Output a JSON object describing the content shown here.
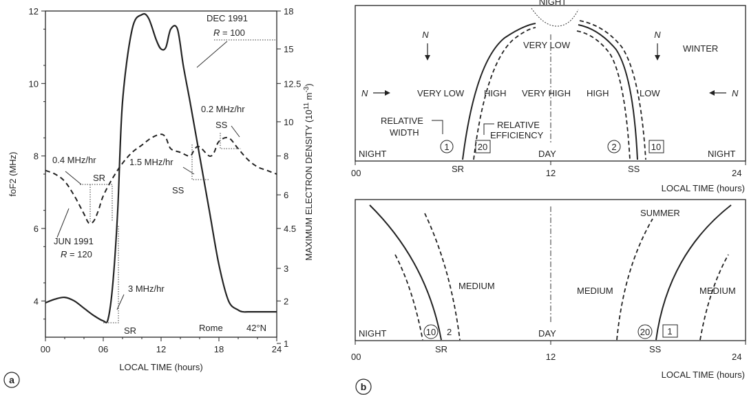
{
  "chart_data": [
    {
      "id": "a",
      "type": "line",
      "panel_label": "a",
      "xlabel": "LOCAL TIME  (hours)",
      "ylabel": "foF2  (MHz)",
      "y2label": "MAXIMUM ELECTRON DENSITY  (10",
      "y2label_exp": "11",
      "y2label_unit": " m",
      "y2label_unit_exp": "-3",
      "y2label_close": ")",
      "xlim": [
        0,
        24
      ],
      "ylim": [
        3,
        12
      ],
      "y2lim": [
        1,
        18
      ],
      "x_ticks": [
        0,
        6,
        12,
        18,
        24
      ],
      "x_tick_labels": [
        "00",
        "06",
        "12",
        "18",
        "24"
      ],
      "y_ticks": [
        4,
        6,
        8,
        10,
        12
      ],
      "y_tick_labels": [
        "4",
        "6",
        "8",
        "10",
        "12"
      ],
      "y2_ticks": [
        1,
        2,
        3,
        4.5,
        6,
        8,
        10,
        12.5,
        15,
        18
      ],
      "y2_tick_labels": [
        "1",
        "2",
        "3",
        "4.5",
        "6",
        "8",
        "10",
        "12.5",
        "15",
        "18"
      ],
      "series": [
        {
          "name": "DEC 1991",
          "style": "solid",
          "x": [
            0,
            1,
            2,
            3,
            4,
            5,
            6,
            6.5,
            7,
            7.5,
            8,
            9,
            10,
            10.7,
            11.5,
            12,
            12.5,
            13,
            13.7,
            14.3,
            15,
            16,
            17,
            18,
            19,
            20,
            20.5,
            21,
            22,
            23,
            24
          ],
          "y": [
            3.95,
            4.05,
            4.1,
            4.0,
            3.8,
            3.6,
            3.45,
            3.5,
            4.5,
            6.5,
            9.5,
            11.5,
            11.9,
            11.8,
            11.2,
            10.95,
            11.0,
            11.5,
            11.5,
            10.5,
            9.5,
            8.0,
            6.5,
            5.0,
            4.0,
            3.75,
            3.7,
            3.7,
            3.7,
            3.7,
            3.7
          ]
        },
        {
          "name": "JUN 1991",
          "style": "dashed",
          "x": [
            0,
            1,
            2,
            3,
            4,
            4.5,
            5,
            5.5,
            6,
            7,
            8,
            9,
            10,
            11,
            12,
            12.5,
            13,
            14,
            15,
            15.5,
            16,
            17,
            17.5,
            18,
            19,
            20,
            21,
            22,
            23,
            24
          ],
          "y": [
            7.6,
            7.5,
            7.3,
            6.9,
            6.4,
            6.15,
            6.2,
            6.5,
            6.9,
            7.4,
            7.8,
            8.1,
            8.3,
            8.5,
            8.6,
            8.5,
            8.2,
            8.1,
            8.0,
            8.2,
            8.25,
            8.0,
            8.1,
            8.4,
            8.5,
            8.2,
            7.9,
            7.7,
            7.6,
            7.5
          ]
        }
      ],
      "annotations": [
        {
          "text": "DEC 1991",
          "x": 20.2,
          "y": 11.5
        },
        {
          "text": "R = 100",
          "x": 20.2,
          "y": 11.1,
          "italic_prefix": "R"
        },
        {
          "text": "JUN 1991",
          "x": 3.5,
          "y": 5.5
        },
        {
          "text": "R = 120",
          "x": 3.5,
          "y": 5.1,
          "italic_prefix": "R"
        },
        {
          "text": "0.4 MHz/hr",
          "x": 1,
          "y": 7.55
        },
        {
          "text": "SR",
          "x": 6,
          "y": 7.3
        },
        {
          "text": "1.5 MHz/hr",
          "x": 12,
          "y": 7.05
        },
        {
          "text": "SS",
          "x": 14.2,
          "y": 6.3
        },
        {
          "text": "0.2 MHz/hr",
          "x": 18.4,
          "y": 8.8
        },
        {
          "text": "SS",
          "x": 19.3,
          "y": 8.4
        },
        {
          "text": "3 MHz/hr",
          "x": 8.5,
          "y": 4.0
        },
        {
          "text": "SR",
          "x": 8.3,
          "y": 3.0
        },
        {
          "text": "Rome",
          "x": 15.8,
          "y": 3.3
        },
        {
          "text": "42°N",
          "x": 19.6,
          "y": 3.3
        }
      ]
    },
    {
      "id": "b-winter",
      "type": "line",
      "panel_label": "b",
      "xlabel": "LOCAL TIME  (hours)",
      "xlim": [
        0,
        24
      ],
      "x_ticks": [
        0,
        12,
        24
      ],
      "x_tick_labels": [
        "00",
        "12",
        "24"
      ],
      "season": "WINTER",
      "labels": {
        "top": "NIGHT",
        "night_left": "NIGHT",
        "night_right": "NIGHT",
        "day": "DAY",
        "sr": "SR",
        "ss": "SS",
        "very_low_left": "VERY LOW",
        "high_left": "HIGH",
        "very_low_center": "VERY LOW",
        "very_high": "VERY HIGH",
        "high_right": "HIGH",
        "low_right": "LOW",
        "relative_width": "RELATIVE",
        "relative_width_2": "WIDTH",
        "relative_efficiency": "RELATIVE",
        "relative_efficiency_2": "EFFICIENCY",
        "n": "N",
        "circle_1": "1",
        "box_20": "20",
        "circle_2": "2",
        "box_10": "10"
      }
    },
    {
      "id": "b-summer",
      "type": "line",
      "xlabel": "LOCAL TIME  (hours)",
      "xlim": [
        0,
        24
      ],
      "x_ticks": [
        0,
        12,
        24
      ],
      "x_tick_labels": [
        "00",
        "12",
        "24"
      ],
      "season": "SUMMER",
      "labels": {
        "night": "NIGHT",
        "day": "DAY",
        "sr": "SR",
        "ss": "SS",
        "medium_1": "MEDIUM",
        "medium_2": "MEDIUM",
        "medium_3": "MEDIUM",
        "circle_10": "10",
        "plain_2": "2",
        "circle_20": "20",
        "box_1": "1"
      }
    }
  ]
}
